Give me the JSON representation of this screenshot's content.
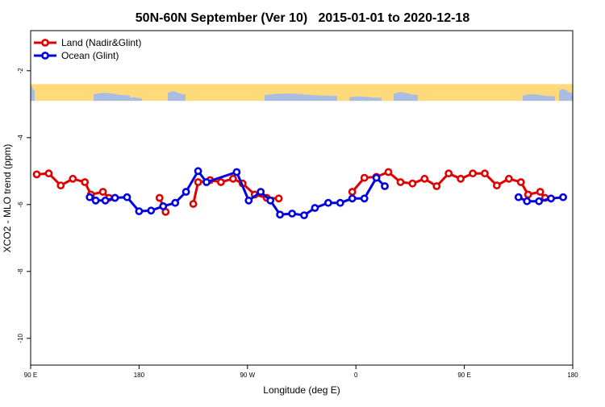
{
  "chart_data": {
    "type": "line",
    "title": "50N-60N September (Ver 10)   2015-01-01 to 2020-12-18",
    "xlabel": "Longitude (deg E)",
    "ylabel": "XCO2 - MLO trend (ppm)",
    "xlim": [
      90,
      540
    ],
    "ylim": [
      -10.8,
      -0.8
    ],
    "x_ticks": [
      {
        "value": 90,
        "label": "90 E"
      },
      {
        "value": 180,
        "label": "180"
      },
      {
        "value": 270,
        "label": "90 W"
      },
      {
        "value": 360,
        "label": "0"
      },
      {
        "value": 450,
        "label": "90 E"
      },
      {
        "value": 540,
        "label": "180"
      }
    ],
    "y_ticks": [
      {
        "value": -2,
        "label": "-2"
      },
      {
        "value": -4,
        "label": "-4"
      },
      {
        "value": -6,
        "label": "-6"
      },
      {
        "value": -8,
        "label": "-8"
      },
      {
        "value": -10,
        "label": "-10"
      }
    ],
    "legend_position": "top-left",
    "grid": false,
    "map_strip": {
      "y_range": [
        -2.9,
        -2.4
      ],
      "land_color": "#ffd97a",
      "ocean_color": "#a9bde3"
    },
    "series": [
      {
        "name": "Land (Nadir&Glint)",
        "color": "#e00000",
        "segments": [
          [
            [
              95,
              -5.1
            ],
            [
              105,
              -5.07
            ],
            [
              115,
              -5.43
            ],
            [
              125,
              -5.23
            ],
            [
              135,
              -5.33
            ],
            [
              140,
              -5.7
            ],
            [
              150,
              -5.62
            ],
            [
              155,
              -5.8
            ],
            [
              160,
              -5.8
            ]
          ],
          [
            [
              197,
              -5.8
            ],
            [
              202,
              -6.22
            ]
          ],
          [
            [
              225,
              -5.98
            ],
            [
              229,
              -5.33
            ],
            [
              239,
              -5.27
            ],
            [
              248,
              -5.33
            ],
            [
              258,
              -5.23
            ],
            [
              266,
              -5.37
            ],
            [
              276,
              -5.7
            ],
            [
              286,
              -5.8
            ],
            [
              296,
              -5.82
            ]
          ],
          [
            [
              357,
              -5.62
            ],
            [
              367,
              -5.2
            ],
            [
              377,
              -5.17
            ],
            [
              387,
              -5.03
            ],
            [
              397,
              -5.33
            ],
            [
              407,
              -5.37
            ],
            [
              417,
              -5.23
            ],
            [
              427,
              -5.45
            ],
            [
              437,
              -5.07
            ],
            [
              447,
              -5.23
            ],
            [
              457,
              -5.07
            ],
            [
              467,
              -5.07
            ],
            [
              477,
              -5.43
            ],
            [
              487,
              -5.23
            ],
            [
              497,
              -5.33
            ],
            [
              503,
              -5.7
            ],
            [
              513,
              -5.62
            ],
            [
              517,
              -5.8
            ]
          ]
        ]
      },
      {
        "name": "Ocean (Glint)",
        "color": "#0000e0",
        "segments": [
          [
            [
              139,
              -5.78
            ],
            [
              144,
              -5.88
            ],
            [
              152,
              -5.88
            ],
            [
              160,
              -5.8
            ],
            [
              170,
              -5.78
            ],
            [
              180,
              -6.2
            ],
            [
              190,
              -6.18
            ],
            [
              200,
              -6.05
            ],
            [
              210,
              -5.95
            ],
            [
              219,
              -5.62
            ],
            [
              229,
              -5.0
            ],
            [
              236,
              -5.33
            ],
            [
              261,
              -5.03
            ],
            [
              271,
              -5.88
            ],
            [
              281,
              -5.62
            ],
            [
              289,
              -5.88
            ],
            [
              297,
              -6.3
            ],
            [
              307,
              -6.27
            ],
            [
              317,
              -6.32
            ],
            [
              326,
              -6.1
            ],
            [
              337,
              -5.95
            ],
            [
              347,
              -5.95
            ],
            [
              357,
              -5.82
            ],
            [
              367,
              -5.82
            ],
            [
              377,
              -5.2
            ],
            [
              384,
              -5.45
            ]
          ],
          [
            [
              495,
              -5.78
            ],
            [
              502,
              -5.9
            ],
            [
              512,
              -5.9
            ],
            [
              522,
              -5.82
            ],
            [
              532,
              -5.78
            ]
          ]
        ]
      }
    ]
  }
}
